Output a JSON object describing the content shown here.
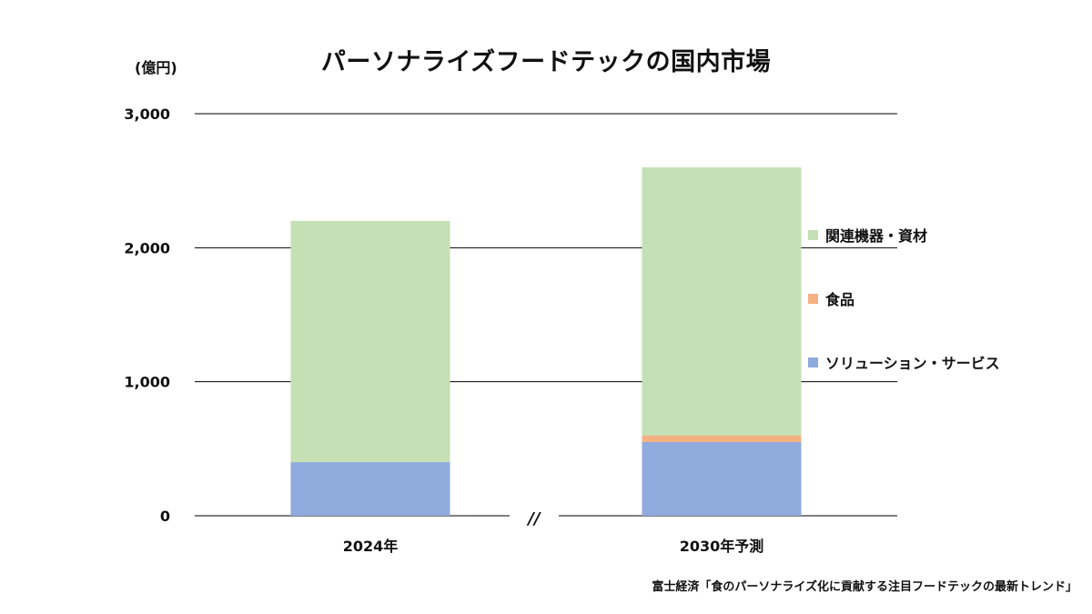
{
  "chart_data": {
    "type": "bar",
    "stacked": true,
    "title": "パーソナライズフードテックの国内市場",
    "unit_label": "(億円)",
    "source": "富士経済「食のパーソナライズ化に貢献する注目フードテックの最新トレンド」",
    "categories": [
      "2024年",
      "2030年予測"
    ],
    "series": [
      {
        "name": "ソリューション・サービス",
        "values": [
          400,
          550
        ],
        "color": "#8faadc"
      },
      {
        "name": "食品",
        "values": [
          0,
          50
        ],
        "color": "#f4b183"
      },
      {
        "name": "関連機器・資材",
        "values": [
          1800,
          2000
        ],
        "color": "#c5e0b4"
      }
    ],
    "legend_order": [
      2,
      1,
      0
    ],
    "ylim": [
      0,
      3000
    ],
    "yticks": [
      0,
      1000,
      2000,
      3000
    ],
    "ytick_labels": [
      "0",
      "1,000",
      "2,000",
      "3,000"
    ],
    "axis_break_label": "//",
    "grid": true,
    "legend_position": "right"
  }
}
